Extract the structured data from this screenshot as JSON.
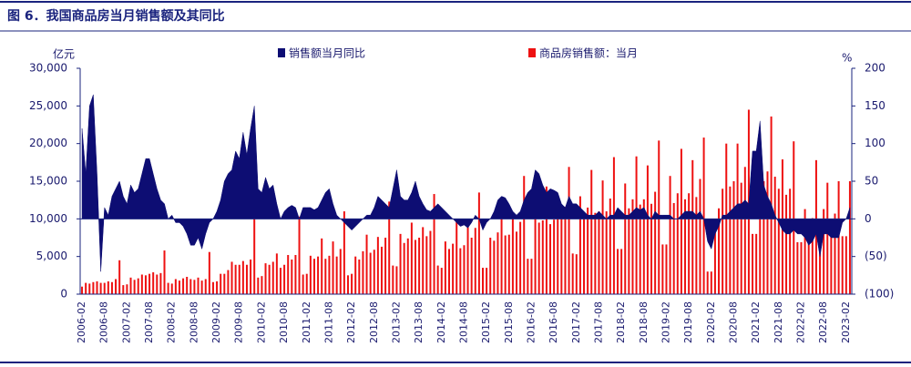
{
  "chart_data": {
    "type": "combo",
    "title": "图 6．我国商品房当月销售额及其同比",
    "y_label": "亿元",
    "y2_label": "%",
    "categories": [
      "2006-02",
      null,
      null,
      null,
      null,
      null,
      "2006-08",
      null,
      null,
      null,
      null,
      null,
      "2007-02",
      null,
      null,
      null,
      null,
      null,
      "2007-08",
      null,
      null,
      null,
      null,
      null,
      "2008-02",
      null,
      null,
      null,
      null,
      null,
      "2008-08",
      null,
      null,
      null,
      null,
      null,
      "2009-02",
      null,
      null,
      null,
      null,
      null,
      "2009-08",
      null,
      null,
      null,
      null,
      null,
      "2010-02",
      null,
      null,
      null,
      null,
      null,
      "2010-08",
      null,
      null,
      null,
      null,
      null,
      "2011-02",
      null,
      null,
      null,
      null,
      null,
      "2011-08",
      null,
      null,
      null,
      null,
      null,
      "2012-02",
      null,
      null,
      null,
      null,
      null,
      "2012-08",
      null,
      null,
      null,
      null,
      null,
      "2013-02",
      null,
      null,
      null,
      null,
      null,
      "2013-08",
      null,
      null,
      null,
      null,
      null,
      "2014-02",
      null,
      null,
      null,
      null,
      null,
      "2014-08",
      null,
      null,
      null,
      null,
      null,
      "2015-02",
      null,
      null,
      null,
      null,
      null,
      "2015-08",
      null,
      null,
      null,
      null,
      null,
      "2016-02",
      null,
      null,
      null,
      null,
      null,
      "2016-08",
      null,
      null,
      null,
      null,
      null,
      "2017-02",
      null,
      null,
      null,
      null,
      null,
      "2017-08",
      null,
      null,
      null,
      null,
      null,
      "2018-02",
      null,
      null,
      null,
      null,
      null,
      "2018-08",
      null,
      null,
      null,
      null,
      null,
      "2019-02",
      null,
      null,
      null,
      null,
      null,
      "2019-08",
      null,
      null,
      null,
      null,
      null,
      "2020-02",
      null,
      null,
      null,
      null,
      null,
      "2020-08",
      null,
      null,
      null,
      null,
      null,
      "2021-02",
      null,
      null,
      null,
      null,
      null,
      "2021-08",
      null,
      null,
      null,
      null,
      null,
      "2022-02",
      null,
      null,
      null,
      null,
      null,
      "2022-08",
      null,
      null,
      null,
      null,
      null,
      "2023-02",
      null
    ],
    "series": [
      {
        "name": "销售额当月同比",
        "type": "area",
        "color": "#0d0d73",
        "axis": "y2",
        "values": [
          120,
          60,
          150,
          165,
          60,
          -70,
          15,
          5,
          30,
          40,
          50,
          30,
          20,
          45,
          35,
          40,
          60,
          80,
          80,
          60,
          40,
          25,
          20,
          0,
          5,
          -5,
          -5,
          -10,
          -20,
          -35,
          -35,
          -25,
          -40,
          -20,
          -5,
          0,
          10,
          25,
          50,
          60,
          65,
          90,
          80,
          115,
          85,
          120,
          150,
          40,
          35,
          55,
          40,
          45,
          20,
          0,
          10,
          15,
          18,
          15,
          0,
          15,
          15,
          15,
          12,
          15,
          25,
          35,
          40,
          20,
          5,
          0,
          -5,
          -10,
          -15,
          -10,
          -5,
          0,
          5,
          5,
          15,
          30,
          25,
          20,
          15,
          40,
          65,
          30,
          25,
          25,
          35,
          50,
          30,
          20,
          12,
          10,
          15,
          20,
          15,
          10,
          5,
          0,
          -5,
          -10,
          -8,
          -12,
          -5,
          5,
          0,
          -15,
          -5,
          0,
          10,
          25,
          30,
          28,
          20,
          10,
          5,
          10,
          25,
          35,
          40,
          65,
          60,
          45,
          35,
          40,
          38,
          35,
          20,
          15,
          30,
          20,
          20,
          15,
          10,
          5,
          5,
          5,
          10,
          5,
          0,
          5,
          5,
          15,
          10,
          5,
          5,
          10,
          15,
          12,
          15,
          5,
          0,
          10,
          5,
          5,
          5,
          5,
          0,
          0,
          5,
          10,
          10,
          10,
          5,
          10,
          0,
          -30,
          -40,
          -20,
          -10,
          5,
          5,
          10,
          15,
          20,
          20,
          25,
          20,
          90,
          90,
          130,
          45,
          30,
          20,
          5,
          -5,
          -15,
          -20,
          -20,
          -15,
          -20,
          -20,
          -25,
          -35,
          -30,
          -20,
          -50,
          -20,
          -20,
          -25,
          -25,
          -25,
          -5,
          0,
          15
        ]
      },
      {
        "name": "商品房销售额：当月",
        "type": "bar",
        "color": "#ee1111",
        "axis": "y",
        "values": [
          1000,
          1500,
          1400,
          1600,
          1700,
          1500,
          1500,
          1700,
          1600,
          2000,
          4500,
          1200,
          1300,
          2200,
          1900,
          2100,
          2600,
          2500,
          2700,
          2900,
          2600,
          2800,
          5800,
          1500,
          1400,
          2000,
          1800,
          2100,
          2300,
          2000,
          1900,
          2200,
          1800,
          2000,
          5600,
          1600,
          1700,
          2700,
          2700,
          3200,
          4300,
          3900,
          3900,
          4400,
          3900,
          4600,
          10200,
          2200,
          2400,
          4100,
          3900,
          4300,
          5400,
          3500,
          3900,
          5200,
          4600,
          5200,
          10300,
          2600,
          2700,
          5100,
          4700,
          5000,
          7400,
          4700,
          5100,
          7000,
          5000,
          6000,
          11000,
          2500,
          2700,
          5000,
          4600,
          5700,
          7900,
          5500,
          5900,
          7600,
          6300,
          7500,
          12300,
          3800,
          3700,
          8000,
          6800,
          7400,
          9500,
          7200,
          7500,
          8900,
          7700,
          8400,
          13300,
          3800,
          3500,
          7000,
          6000,
          6700,
          9900,
          6100,
          6500,
          9000,
          7500,
          8800,
          13500,
          3500,
          3500,
          7500,
          7100,
          8200,
          11700,
          7800,
          7900,
          10000,
          8300,
          9600,
          15700,
          4700,
          4700,
          11000,
          9500,
          9800,
          14300,
          9300,
          9900,
          13200,
          10000,
          11600,
          16900,
          5400,
          5300,
          13000,
          10800,
          11500,
          16500,
          10800,
          11000,
          15100,
          11000,
          12700,
          18200,
          6000,
          6000,
          14700,
          11400,
          12600,
          18300,
          11900,
          12600,
          17100,
          12000,
          13600,
          20400,
          6600,
          6600,
          15700,
          12100,
          13400,
          19300,
          12600,
          13400,
          17800,
          12900,
          15300,
          20800,
          3000,
          3000,
          9700,
          11400,
          14000,
          20000,
          14300,
          15000,
          20000,
          14800,
          16900,
          24500,
          8000,
          8000,
          21000,
          15000,
          16300,
          23600,
          15600,
          14000,
          17900,
          13200,
          14000,
          20300,
          6900,
          6900,
          11300,
          8500,
          10100,
          17800,
          9100,
          11300,
          14800,
          8700,
          10700,
          15000,
          7700,
          7700,
          15000
        ]
      }
    ],
    "ylim": [
      0,
      30000
    ],
    "yticks": [
      0,
      {
        "value": 5000,
        "label": "5,000"
      },
      {
        "value": 10000,
        "label": "10,000"
      },
      {
        "value": 15000,
        "label": "15,000"
      },
      {
        "value": 20000,
        "label": "20,000"
      },
      {
        "value": 25000,
        "label": "25,000"
      },
      {
        "value": 30000,
        "label": "30,000"
      }
    ],
    "y2lim": [
      -100,
      200
    ],
    "y2ticks": [
      {
        "value": -100,
        "label": "(100)"
      },
      {
        "value": -50,
        "label": "(50)"
      },
      0,
      50,
      100,
      150,
      200
    ],
    "legend": "top"
  }
}
